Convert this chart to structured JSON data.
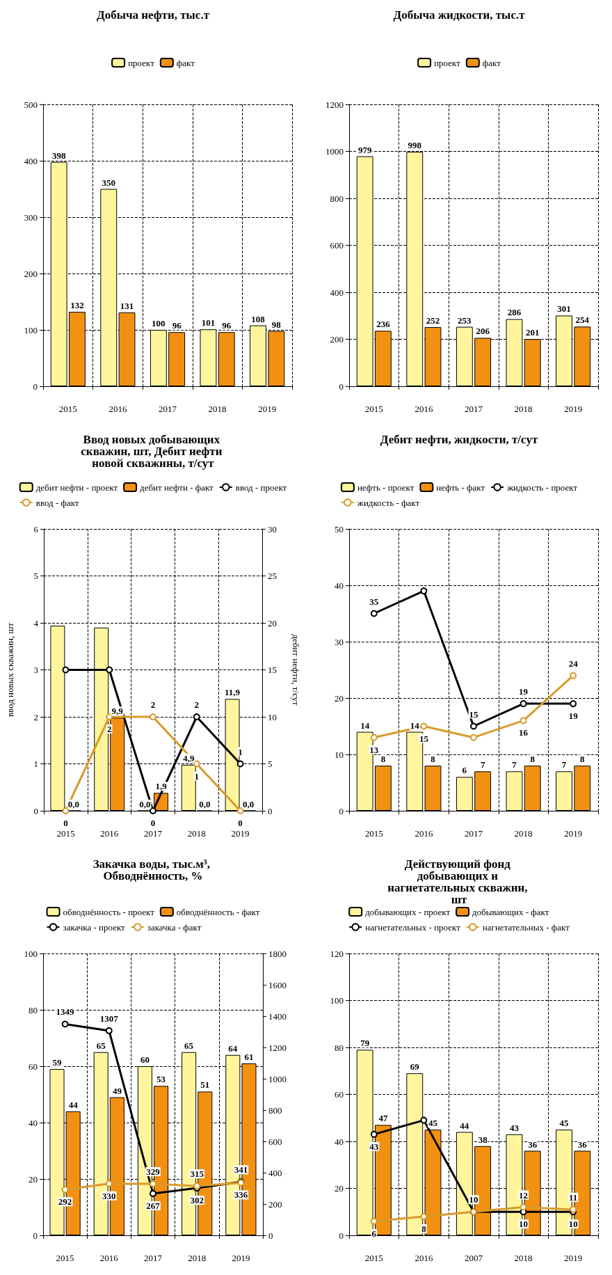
{
  "chart_data": [
    {
      "type": "bar",
      "title": "Добыча нефти, тыс.т",
      "categories": [
        "2015",
        "2016",
        "2017",
        "2018",
        "2019"
      ],
      "ylim": [
        0,
        500
      ],
      "yticks": [
        0,
        100,
        200,
        300,
        400,
        500
      ],
      "grid": true,
      "legend": "top",
      "data_labels": true,
      "series": [
        {
          "name": "проект",
          "color": "#fff59d",
          "values": [
            398,
            350,
            100,
            101,
            108
          ]
        },
        {
          "name": "факт",
          "color": "#f29111",
          "values": [
            132,
            131,
            96,
            96,
            98
          ]
        }
      ]
    },
    {
      "type": "bar",
      "title": "Добыча жидкости, тыс.т",
      "categories": [
        "2015",
        "2016",
        "2017",
        "2018",
        "2019"
      ],
      "ylim": [
        0,
        1200
      ],
      "yticks": [
        0,
        200,
        400,
        600,
        800,
        1000,
        1200
      ],
      "grid": true,
      "legend": "top",
      "data_labels": true,
      "series": [
        {
          "name": "проект",
          "color": "#fff59d",
          "values": [
            979,
            998,
            253,
            286,
            301
          ]
        },
        {
          "name": "факт",
          "color": "#f29111",
          "values": [
            236,
            252,
            206,
            201,
            254
          ]
        }
      ]
    },
    {
      "type": "bar",
      "title": "Ввод новых добывающих скважин, шт, Дебит нефти новой скважины, т/сут",
      "categories": [
        "2015",
        "2016",
        "2017",
        "2018",
        "2019"
      ],
      "ylabel": "ввод новых скважин, шт",
      "y2label": "дебит нефти, т/сут",
      "ylim": [
        0,
        6
      ],
      "yticks": [
        0,
        1,
        2,
        3,
        4,
        5,
        6
      ],
      "y2lim": [
        0,
        30
      ],
      "y2ticks": [
        0,
        5,
        10,
        15,
        20,
        25,
        30
      ],
      "grid": true,
      "legend": "top",
      "marker": "circle",
      "series": [
        {
          "name": "дебит нефти - проект",
          "type": "bar",
          "axis": "y2",
          "color": "#fff59d",
          "values": [
            19.7,
            19.5,
            0,
            4.9,
            11.9
          ],
          "value_labels": [
            null,
            null,
            "0,0",
            "4,9",
            "11,9"
          ]
        },
        {
          "name": "дебит нефти - факт",
          "type": "bar",
          "axis": "y2",
          "color": "#f29111",
          "values": [
            0,
            9.9,
            1.9,
            0,
            0
          ],
          "value_labels": [
            "0,0",
            "9,9",
            "1,9",
            "0,0",
            "0,0"
          ]
        },
        {
          "name": "ввод - проект",
          "type": "line",
          "axis": "y",
          "color": "#000000",
          "values": [
            3,
            3,
            0,
            2,
            1
          ],
          "value_labels": [
            null,
            null,
            "0",
            "2",
            "1"
          ]
        },
        {
          "name": "ввод - факт",
          "type": "line",
          "axis": "y",
          "color": "#d99a2b",
          "values": [
            0,
            2,
            2,
            1,
            0
          ],
          "value_labels": [
            "0",
            "2",
            "2",
            "1",
            "0"
          ]
        }
      ]
    },
    {
      "type": "bar",
      "title": "Дебит нефти, жидкости, т/сут",
      "categories": [
        "2015",
        "2016",
        "2017",
        "2018",
        "2019"
      ],
      "ylim": [
        0,
        50
      ],
      "yticks": [
        0,
        10,
        20,
        30,
        40,
        50
      ],
      "grid": true,
      "legend": "top",
      "marker": "circle",
      "series": [
        {
          "name": "нефть - проект",
          "type": "bar",
          "color": "#fff59d",
          "values": [
            14,
            14,
            6,
            7,
            7
          ],
          "value_labels": [
            "14",
            "14",
            "6",
            "7",
            "7"
          ]
        },
        {
          "name": "нефть - факт",
          "type": "bar",
          "color": "#f29111",
          "values": [
            8,
            8,
            7,
            8,
            8
          ],
          "value_labels": [
            "8",
            "8",
            "7",
            "8",
            "8"
          ]
        },
        {
          "name": "жидкость - проект",
          "type": "line",
          "color": "#000000",
          "values": [
            35,
            39,
            15,
            19,
            19
          ],
          "value_labels": [
            "35",
            null,
            "15",
            "19",
            "19"
          ]
        },
        {
          "name": "жидкость - факт",
          "type": "line",
          "color": "#d99a2b",
          "values": [
            13,
            15,
            13,
            16,
            24
          ],
          "value_labels": [
            "13",
            "15",
            null,
            "16",
            "24"
          ]
        }
      ]
    },
    {
      "type": "bar",
      "title": "Закачка воды, тыс.м³, Обводнённость, %",
      "categories": [
        "2015",
        "2016",
        "2017",
        "2018",
        "2019"
      ],
      "ylim": [
        0,
        100
      ],
      "yticks": [
        0,
        20,
        40,
        60,
        80,
        100
      ],
      "y2lim": [
        0,
        1800
      ],
      "y2ticks": [
        0,
        200,
        400,
        600,
        800,
        1000,
        1200,
        1400,
        1600,
        1800
      ],
      "grid": true,
      "legend": "top",
      "marker": "circle",
      "data_labels": true,
      "series": [
        {
          "name": "обводнённость - проект",
          "type": "bar",
          "axis": "y",
          "color": "#fff59d",
          "values": [
            59,
            65,
            60,
            65,
            64
          ]
        },
        {
          "name": "обводнённость - факт",
          "type": "bar",
          "axis": "y",
          "color": "#f29111",
          "values": [
            44,
            49,
            53,
            51,
            61
          ]
        },
        {
          "name": "закачка - проект",
          "type": "line",
          "axis": "y2",
          "color": "#000000",
          "values": [
            1349,
            1307,
            267,
            302,
            341
          ]
        },
        {
          "name": "закачка - факт",
          "type": "line",
          "axis": "y2",
          "color": "#d99a2b",
          "values": [
            292,
            330,
            329,
            315,
            336
          ]
        }
      ]
    },
    {
      "type": "bar",
      "title": "Действующий фонд добывающих и нагнетательных скважин, шт",
      "categories": [
        "2015",
        "2016",
        "2007",
        "2018",
        "2019"
      ],
      "ylim": [
        0,
        120
      ],
      "yticks": [
        0,
        20,
        40,
        60,
        80,
        100,
        120
      ],
      "grid": true,
      "legend": "top",
      "marker": "circle",
      "series": [
        {
          "name": "добывающих - проект",
          "type": "bar",
          "color": "#fff59d",
          "values": [
            79,
            69,
            44,
            43,
            45
          ],
          "value_labels": [
            "79",
            "69",
            "44",
            "43",
            "45"
          ]
        },
        {
          "name": "добывающих - факт",
          "type": "bar",
          "color": "#f29111",
          "values": [
            47,
            45,
            38,
            36,
            36
          ],
          "value_labels": [
            "47",
            "45",
            "38",
            "36",
            "36"
          ]
        },
        {
          "name": "нагнетательных - проект",
          "type": "line",
          "color": "#000000",
          "values": [
            43,
            49,
            10,
            10,
            10
          ],
          "value_labels": [
            "43",
            null,
            "10",
            "10",
            "10"
          ]
        },
        {
          "name": "нагнетательных - факт",
          "type": "line",
          "color": "#d99a2b",
          "values": [
            6,
            8,
            10,
            12,
            11
          ],
          "value_labels": [
            "6",
            "8",
            null,
            "12",
            "11"
          ]
        }
      ]
    }
  ]
}
